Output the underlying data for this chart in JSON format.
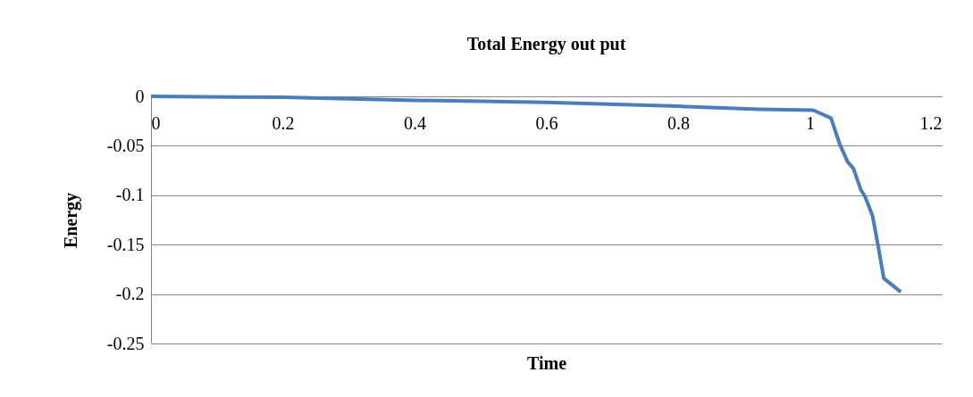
{
  "chart_data": {
    "type": "line",
    "title": "Total Energy out put",
    "xlabel": "Time",
    "ylabel": "Energy",
    "series": [
      {
        "color": "#4a7ebb",
        "x": [
          0,
          0.2,
          0.4,
          0.6,
          0.8,
          0.923,
          1.005,
          1.032,
          1.045,
          1.057,
          1.066,
          1.077,
          1.084,
          1.095,
          1.104,
          1.112,
          1.138
        ],
        "values": [
          0,
          -0.001,
          -0.004,
          -0.006,
          -0.01,
          -0.013,
          -0.014,
          -0.022,
          -0.048,
          -0.066,
          -0.073,
          -0.094,
          -0.102,
          -0.121,
          -0.153,
          -0.184,
          -0.198
        ]
      }
    ],
    "xlim": [
      0,
      1.2
    ],
    "xticks": [
      0,
      0.2,
      0.4,
      0.6,
      0.8,
      1,
      1.2
    ],
    "ylim": [
      -0.25,
      0
    ],
    "yticks": [
      -0.25,
      -0.2,
      -0.15,
      -0.1,
      -0.05,
      0
    ],
    "grid": "y",
    "legend": false,
    "marker": "none",
    "line_style": "solid"
  }
}
